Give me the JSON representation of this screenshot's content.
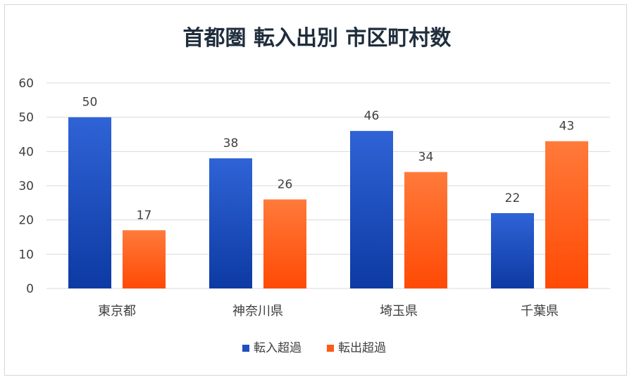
{
  "chart_data": {
    "type": "bar",
    "title": "首都圏 転入出別 市区町村数",
    "xlabel": "",
    "ylabel": "",
    "categories": [
      "東京都",
      "神奈川県",
      "埼玉県",
      "千葉県"
    ],
    "series": [
      {
        "name": "転入超過",
        "values": [
          50,
          38,
          46,
          22
        ],
        "color": "#1f4fbf"
      },
      {
        "name": "転出超過",
        "values": [
          17,
          26,
          34,
          43
        ],
        "color": "#ff5a14"
      }
    ],
    "ylim": [
      0,
      60
    ],
    "yticks": [
      0,
      10,
      20,
      30,
      40,
      50,
      60
    ],
    "grid": true,
    "legend_position": "bottom",
    "data_labels": true
  }
}
